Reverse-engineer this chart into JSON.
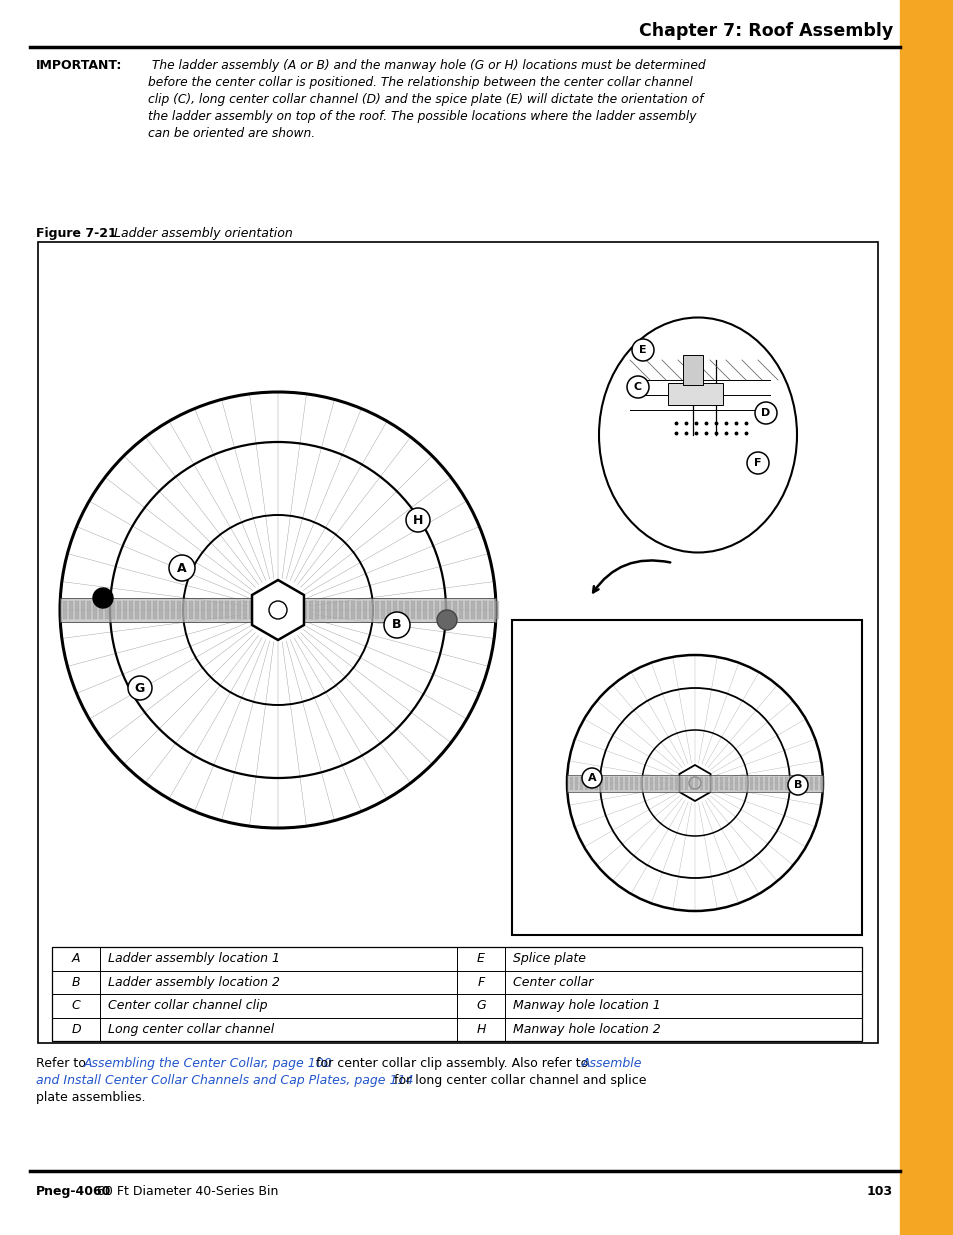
{
  "page_title": "Chapter 7: Roof Assembly",
  "important_label": "IMPORTANT:",
  "figure_caption_bold": "Figure 7-21",
  "figure_caption_italic": " Ladder assembly orientation",
  "table_data": [
    [
      "A",
      "Ladder assembly location 1",
      "E",
      "Splice plate"
    ],
    [
      "B",
      "Ladder assembly location 2",
      "F",
      "Center collar"
    ],
    [
      "C",
      "Center collar channel clip",
      "G",
      "Manway hole location 1"
    ],
    [
      "D",
      "Long center collar channel",
      "H",
      "Manway hole location 2"
    ]
  ],
  "footer_bold": "Pneg-4060",
  "footer_normal": " 60 Ft Diameter 40-Series Bin",
  "footer_page": "103",
  "orange_color": "#F5A623",
  "bg_color": "#FFFFFF",
  "text_color": "#000000",
  "link_color": "#2255CC",
  "important_lines": [
    " The ladder assembly (A or B) and the manway hole (G or H) locations must be determined",
    "before the center collar is positioned. The relationship between the center collar channel",
    "clip (C), long center collar channel (D) and the spice plate (E) will dictate the orientation of",
    "the ladder assembly on top of the roof. The possible locations where the ladder assembly",
    "can be oriented are shown."
  ]
}
